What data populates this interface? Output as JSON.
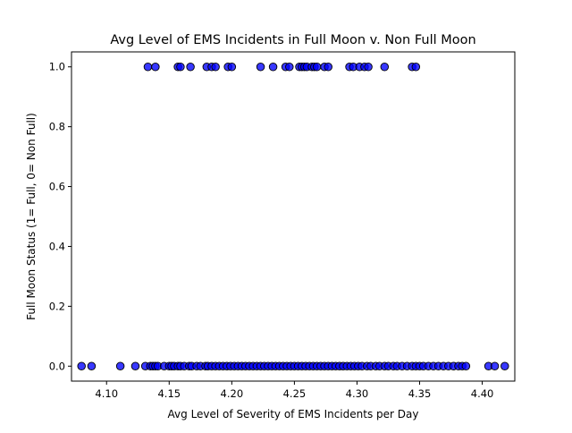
{
  "chart_data": {
    "type": "scatter",
    "title": "Avg Level of EMS Incidents in Full Moon v. Non Full Moon",
    "xlabel": "Avg Level of Severity of EMS Incidents per Day",
    "ylabel": "Full Moon Status (1= Full, 0= Non Full)",
    "xlim": [
      4.072,
      4.426
    ],
    "ylim": [
      -0.05,
      1.05
    ],
    "xticks": [
      4.1,
      4.15,
      4.2,
      4.25,
      4.3,
      4.35,
      4.4
    ],
    "xtick_labels": [
      "4.10",
      "4.15",
      "4.20",
      "4.25",
      "4.30",
      "4.35",
      "4.40"
    ],
    "yticks": [
      0.0,
      0.2,
      0.4,
      0.6,
      0.8,
      1.0
    ],
    "ytick_labels": [
      "0.0",
      "0.2",
      "0.4",
      "0.6",
      "0.8",
      "1.0"
    ],
    "grid": false,
    "marker_color": "#0000ff",
    "marker_edge_color": "#000000",
    "series": [
      {
        "name": "",
        "points": [
          {
            "x": 4.133,
            "y": 1
          },
          {
            "x": 4.139,
            "y": 1
          },
          {
            "x": 4.157,
            "y": 1
          },
          {
            "x": 4.159,
            "y": 1
          },
          {
            "x": 4.167,
            "y": 1
          },
          {
            "x": 4.18,
            "y": 1
          },
          {
            "x": 4.184,
            "y": 1
          },
          {
            "x": 4.187,
            "y": 1
          },
          {
            "x": 4.197,
            "y": 1
          },
          {
            "x": 4.2,
            "y": 1
          },
          {
            "x": 4.223,
            "y": 1
          },
          {
            "x": 4.233,
            "y": 1
          },
          {
            "x": 4.243,
            "y": 1
          },
          {
            "x": 4.246,
            "y": 1
          },
          {
            "x": 4.254,
            "y": 1
          },
          {
            "x": 4.256,
            "y": 1
          },
          {
            "x": 4.258,
            "y": 1
          },
          {
            "x": 4.26,
            "y": 1
          },
          {
            "x": 4.264,
            "y": 1
          },
          {
            "x": 4.266,
            "y": 1
          },
          {
            "x": 4.268,
            "y": 1
          },
          {
            "x": 4.274,
            "y": 1
          },
          {
            "x": 4.277,
            "y": 1
          },
          {
            "x": 4.294,
            "y": 1
          },
          {
            "x": 4.297,
            "y": 1
          },
          {
            "x": 4.302,
            "y": 1
          },
          {
            "x": 4.306,
            "y": 1
          },
          {
            "x": 4.309,
            "y": 1
          },
          {
            "x": 4.322,
            "y": 1
          },
          {
            "x": 4.344,
            "y": 1
          },
          {
            "x": 4.347,
            "y": 1
          },
          {
            "x": 4.08,
            "y": 0
          },
          {
            "x": 4.088,
            "y": 0
          },
          {
            "x": 4.111,
            "y": 0
          },
          {
            "x": 4.123,
            "y": 0
          },
          {
            "x": 4.131,
            "y": 0
          },
          {
            "x": 4.135,
            "y": 0
          },
          {
            "x": 4.137,
            "y": 0
          },
          {
            "x": 4.139,
            "y": 0
          },
          {
            "x": 4.141,
            "y": 0
          },
          {
            "x": 4.146,
            "y": 0
          },
          {
            "x": 4.15,
            "y": 0
          },
          {
            "x": 4.152,
            "y": 0
          },
          {
            "x": 4.154,
            "y": 0
          },
          {
            "x": 4.157,
            "y": 0
          },
          {
            "x": 4.159,
            "y": 0
          },
          {
            "x": 4.162,
            "y": 0
          },
          {
            "x": 4.166,
            "y": 0
          },
          {
            "x": 4.168,
            "y": 0
          },
          {
            "x": 4.172,
            "y": 0
          },
          {
            "x": 4.175,
            "y": 0
          },
          {
            "x": 4.179,
            "y": 0
          },
          {
            "x": 4.181,
            "y": 0
          },
          {
            "x": 4.184,
            "y": 0
          },
          {
            "x": 4.187,
            "y": 0
          },
          {
            "x": 4.19,
            "y": 0
          },
          {
            "x": 4.193,
            "y": 0
          },
          {
            "x": 4.196,
            "y": 0
          },
          {
            "x": 4.199,
            "y": 0
          },
          {
            "x": 4.202,
            "y": 0
          },
          {
            "x": 4.205,
            "y": 0
          },
          {
            "x": 4.208,
            "y": 0
          },
          {
            "x": 4.211,
            "y": 0
          },
          {
            "x": 4.214,
            "y": 0
          },
          {
            "x": 4.217,
            "y": 0
          },
          {
            "x": 4.22,
            "y": 0
          },
          {
            "x": 4.223,
            "y": 0
          },
          {
            "x": 4.226,
            "y": 0
          },
          {
            "x": 4.229,
            "y": 0
          },
          {
            "x": 4.232,
            "y": 0
          },
          {
            "x": 4.235,
            "y": 0
          },
          {
            "x": 4.238,
            "y": 0
          },
          {
            "x": 4.241,
            "y": 0
          },
          {
            "x": 4.244,
            "y": 0
          },
          {
            "x": 4.247,
            "y": 0
          },
          {
            "x": 4.25,
            "y": 0
          },
          {
            "x": 4.253,
            "y": 0
          },
          {
            "x": 4.256,
            "y": 0
          },
          {
            "x": 4.259,
            "y": 0
          },
          {
            "x": 4.262,
            "y": 0
          },
          {
            "x": 4.265,
            "y": 0
          },
          {
            "x": 4.268,
            "y": 0
          },
          {
            "x": 4.271,
            "y": 0
          },
          {
            "x": 4.274,
            "y": 0
          },
          {
            "x": 4.277,
            "y": 0
          },
          {
            "x": 4.28,
            "y": 0
          },
          {
            "x": 4.283,
            "y": 0
          },
          {
            "x": 4.286,
            "y": 0
          },
          {
            "x": 4.289,
            "y": 0
          },
          {
            "x": 4.292,
            "y": 0
          },
          {
            "x": 4.295,
            "y": 0
          },
          {
            "x": 4.298,
            "y": 0
          },
          {
            "x": 4.301,
            "y": 0
          },
          {
            "x": 4.304,
            "y": 0
          },
          {
            "x": 4.308,
            "y": 0
          },
          {
            "x": 4.311,
            "y": 0
          },
          {
            "x": 4.315,
            "y": 0
          },
          {
            "x": 4.318,
            "y": 0
          },
          {
            "x": 4.322,
            "y": 0
          },
          {
            "x": 4.325,
            "y": 0
          },
          {
            "x": 4.329,
            "y": 0
          },
          {
            "x": 4.332,
            "y": 0
          },
          {
            "x": 4.336,
            "y": 0
          },
          {
            "x": 4.34,
            "y": 0
          },
          {
            "x": 4.344,
            "y": 0
          },
          {
            "x": 4.347,
            "y": 0
          },
          {
            "x": 4.35,
            "y": 0
          },
          {
            "x": 4.353,
            "y": 0
          },
          {
            "x": 4.357,
            "y": 0
          },
          {
            "x": 4.361,
            "y": 0
          },
          {
            "x": 4.365,
            "y": 0
          },
          {
            "x": 4.369,
            "y": 0
          },
          {
            "x": 4.373,
            "y": 0
          },
          {
            "x": 4.377,
            "y": 0
          },
          {
            "x": 4.381,
            "y": 0
          },
          {
            "x": 4.384,
            "y": 0
          },
          {
            "x": 4.387,
            "y": 0
          },
          {
            "x": 4.405,
            "y": 0
          },
          {
            "x": 4.41,
            "y": 0
          },
          {
            "x": 4.418,
            "y": 0
          }
        ]
      }
    ]
  }
}
